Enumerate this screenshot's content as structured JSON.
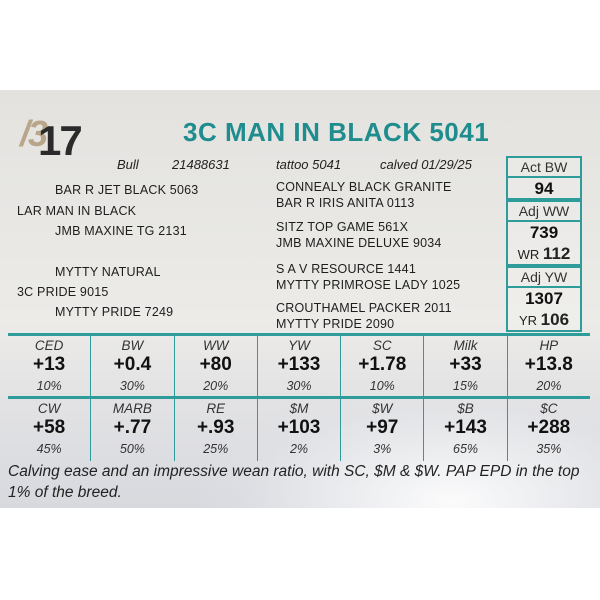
{
  "lot": {
    "prefix": "/3",
    "number": "17"
  },
  "title": "3C MAN IN BLACK 5041",
  "meta": {
    "type": "Bull",
    "reg": "21488631",
    "tattoo": "tattoo 5041",
    "calved": "calved 01/29/25"
  },
  "pedigree": {
    "sire": "LAR MAN IN BLACK",
    "sire_sire": "BAR R JET BLACK 5063",
    "sire_dam": "JMB MAXINE TG 2131",
    "dam": "3C PRIDE 9015",
    "dam_sire": "MYTTY NATURAL",
    "dam_dam": "MYTTY PRIDE 7249",
    "ss_sire": "CONNEALY BLACK GRANITE",
    "ss_dam": "BAR R IRIS ANITA 0113",
    "sd_sire": "SITZ TOP GAME 561X",
    "sd_dam": "JMB MAXINE DELUXE 9034",
    "ds_sire": "S A V RESOURCE 1441",
    "ds_dam": "MYTTY PRIMROSE LADY 1025",
    "dd_sire": "CROUTHAMEL PACKER 2011",
    "dd_dam": "MYTTY PRIDE 2090"
  },
  "weights": {
    "act_bw": {
      "label": "Act BW",
      "value": "94"
    },
    "adj_ww": {
      "label": "Adj WW",
      "value": "739",
      "ratio_label": "WR",
      "ratio": "112"
    },
    "adj_yw": {
      "label": "Adj YW",
      "value": "1307",
      "ratio_label": "YR",
      "ratio": "106"
    }
  },
  "epd_row1": [
    {
      "label": "CED",
      "value": "+13",
      "pct": "10%"
    },
    {
      "label": "BW",
      "value": "+0.4",
      "pct": "30%"
    },
    {
      "label": "WW",
      "value": "+80",
      "pct": "20%"
    },
    {
      "label": "YW",
      "value": "+133",
      "pct": "30%"
    },
    {
      "label": "SC",
      "value": "+1.78",
      "pct": "10%"
    },
    {
      "label": "Milk",
      "value": "+33",
      "pct": "15%"
    },
    {
      "label": "HP",
      "value": "+13.8",
      "pct": "20%"
    }
  ],
  "epd_row2": [
    {
      "label": "CW",
      "value": "+58",
      "pct": "45%"
    },
    {
      "label": "MARB",
      "value": "+.77",
      "pct": "50%"
    },
    {
      "label": "RE",
      "value": "+.93",
      "pct": "25%"
    },
    {
      "label": "$M",
      "value": "+103",
      "pct": "2%"
    },
    {
      "label": "$W",
      "value": "+97",
      "pct": "3%"
    },
    {
      "label": "$B",
      "value": "+143",
      "pct": "65%"
    },
    {
      "label": "$C",
      "value": "+288",
      "pct": "35%"
    }
  ],
  "note": "Calving ease and an impressive wean ratio, with SC, $M & $W. PAP EPD in the top 1% of the breed.",
  "colors": {
    "accent": "#2e9c9a",
    "title": "#1f8c8e"
  }
}
